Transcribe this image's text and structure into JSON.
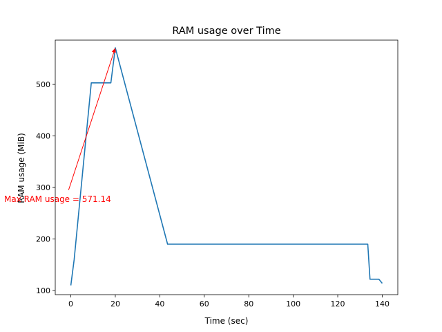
{
  "chart_data": {
    "type": "line",
    "title": "RAM usage over Time",
    "xlabel": "Time (sec)",
    "ylabel": "RAM usage (MiB)",
    "xlim": [
      -7,
      147
    ],
    "ylim": [
      92,
      586
    ],
    "x_ticks": [
      0,
      20,
      40,
      60,
      80,
      100,
      120,
      140
    ],
    "x_tick_labels": [
      "0",
      "20",
      "40",
      "60",
      "80",
      "100",
      "120",
      "140"
    ],
    "y_ticks": [
      100,
      200,
      300,
      400,
      500
    ],
    "y_tick_labels": [
      "100",
      "200",
      "300",
      "400",
      "500"
    ],
    "grid": false,
    "series": [
      {
        "color": "#1f77b4",
        "x": [
          0,
          1.5,
          9.2,
          18,
          20,
          43.5,
          133.5,
          134.5,
          138.5,
          140
        ],
        "y": [
          110,
          160,
          503,
          503,
          571.14,
          190,
          190,
          122,
          122,
          114
        ]
      }
    ],
    "annotation": {
      "text": "Max RAM usage = 571.14",
      "color": "#ff0000",
      "point": [
        20,
        571.14
      ],
      "text_anchor_data": [
        -1,
        295
      ]
    }
  }
}
